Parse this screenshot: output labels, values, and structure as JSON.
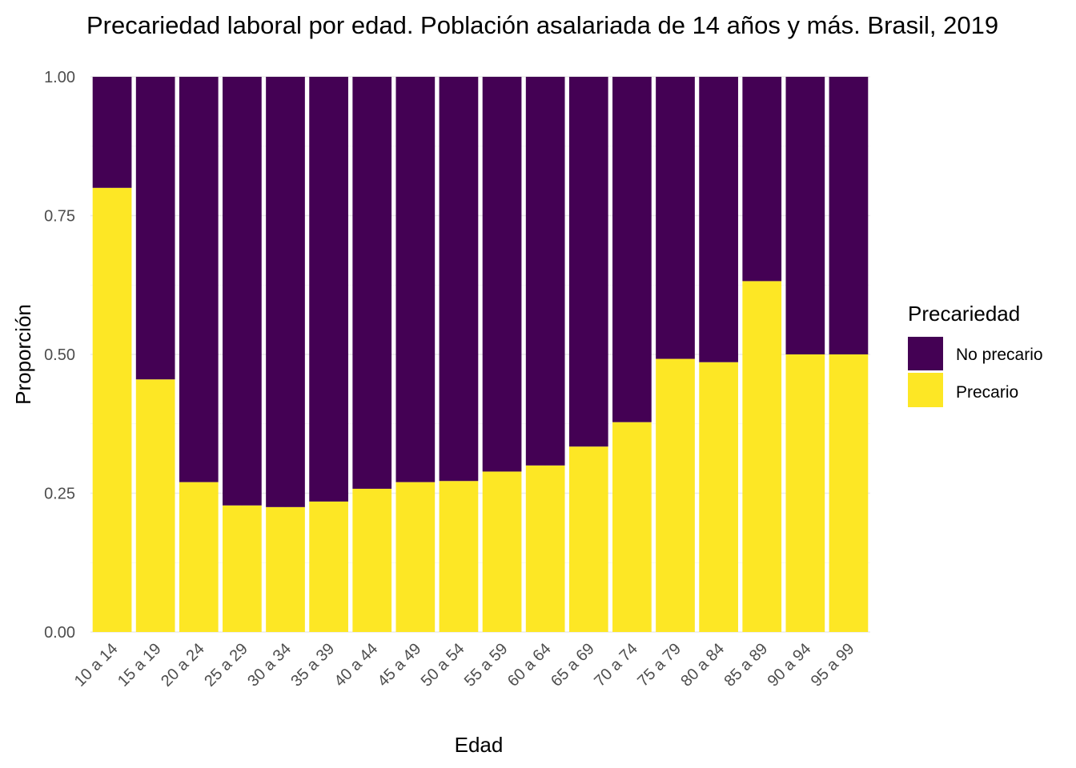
{
  "colors": {
    "no_precario": "#440154",
    "precario": "#FDE725"
  },
  "chart_data": {
    "type": "bar",
    "stacked": true,
    "title": "Precariedad laboral por edad. Población asalariada de 14 años y más. Brasil, 2019",
    "xlabel": "Edad",
    "ylabel": "Proporción",
    "ylim": [
      0,
      1
    ],
    "yticks": [
      "0.00",
      "0.25",
      "0.50",
      "0.75",
      "1.00"
    ],
    "grid": true,
    "legend": {
      "title": "Precariedad",
      "placement": "right",
      "entries": [
        "No precario",
        "Precario"
      ]
    },
    "categories": [
      "10 a 14",
      "15 a 19",
      "20 a 24",
      "25 a 29",
      "30 a 34",
      "35 a 39",
      "40 a 44",
      "45 a 49",
      "50 a 54",
      "55 a 59",
      "60 a 64",
      "65 a 69",
      "70 a 74",
      "75 a 79",
      "80 a 84",
      "85 a 89",
      "90 a 94",
      "95 a 99"
    ],
    "series": [
      {
        "name": "Precario",
        "values": [
          0.8,
          0.455,
          0.27,
          0.228,
          0.225,
          0.235,
          0.258,
          0.27,
          0.272,
          0.289,
          0.3,
          0.334,
          0.378,
          0.492,
          0.486,
          0.632,
          0.5,
          0.5
        ]
      },
      {
        "name": "No precario",
        "values": [
          0.2,
          0.545,
          0.73,
          0.772,
          0.775,
          0.765,
          0.742,
          0.73,
          0.728,
          0.711,
          0.7,
          0.666,
          0.622,
          0.508,
          0.514,
          0.368,
          0.5,
          0.5
        ]
      }
    ]
  }
}
